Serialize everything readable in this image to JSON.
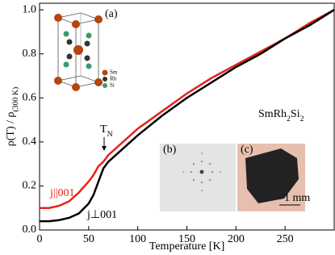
{
  "chart_data": {
    "type": "line",
    "xlabel": "Temperature [K]",
    "ylabel": [
      {
        "t": "ρ(T) / ρ"
      },
      {
        "t": "(300 K)",
        "sub": true
      }
    ],
    "x": [
      0,
      10,
      20,
      30,
      40,
      50,
      55,
      60,
      65,
      70,
      80,
      100,
      125,
      150,
      175,
      200,
      225,
      250,
      275,
      300
    ],
    "series": [
      {
        "name": [
          {
            "t": "j||001"
          }
        ],
        "color": "#e8221b",
        "values": [
          0.1,
          0.1,
          0.11,
          0.13,
          0.17,
          0.22,
          0.25,
          0.29,
          0.31,
          0.34,
          0.38,
          0.46,
          0.54,
          0.62,
          0.69,
          0.75,
          0.81,
          0.87,
          0.94,
          1.0
        ]
      },
      {
        "name": [
          {
            "t": "j⊥001"
          }
        ],
        "color": "#000000",
        "values": [
          0.04,
          0.04,
          0.045,
          0.055,
          0.075,
          0.12,
          0.16,
          0.22,
          0.28,
          0.31,
          0.35,
          0.43,
          0.52,
          0.6,
          0.67,
          0.74,
          0.8,
          0.87,
          0.93,
          1.0
        ]
      }
    ],
    "xlim": [
      0,
      300
    ],
    "xticks": [
      0,
      50,
      100,
      150,
      200,
      250
    ],
    "ylim": [
      0,
      1.03
    ],
    "yticks": [
      {
        "value": 0,
        "label": "0.0"
      },
      {
        "value": 0.2,
        "label": "0.2"
      },
      {
        "value": 0.4,
        "label": "0.4"
      },
      {
        "value": 0.6,
        "label": "0.6"
      },
      {
        "value": 0.8,
        "label": "0.8"
      },
      {
        "value": 1.0,
        "label": "1.0"
      }
    ],
    "annotations": {
      "tn": [
        {
          "t": "T"
        },
        {
          "t": "N",
          "sub": true
        }
      ],
      "compound": [
        {
          "t": "SmRh"
        },
        {
          "t": "2",
          "sub": true
        },
        {
          "t": "Si"
        },
        {
          "t": "2",
          "sub": true
        }
      ],
      "inset_a": "(a)",
      "inset_b": "(b)",
      "inset_c": "(c)",
      "scale": "1 mm",
      "sm": "Sm",
      "rh": "Rh",
      "si": "Si"
    }
  }
}
